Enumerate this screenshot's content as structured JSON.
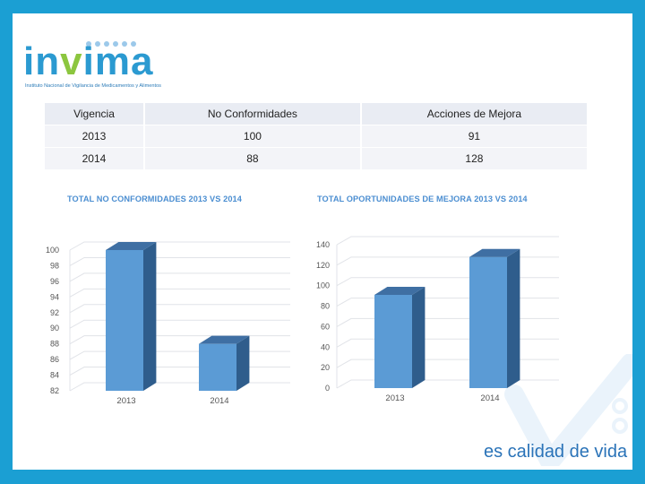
{
  "logo": {
    "text_before": "in",
    "text_v": "v",
    "text_after": "ima",
    "subtitle": "Instituto Nacional de Vigilancia de Medicamentos y Alimentos"
  },
  "table": {
    "headers": [
      "Vigencia",
      "No Conformidades",
      "Acciones de Mejora"
    ],
    "rows": [
      [
        "2013",
        "100",
        "91"
      ],
      [
        "2014",
        "88",
        "128"
      ]
    ]
  },
  "colors": {
    "frame": "#1b9fd3",
    "bar_front": "#5b9bd5",
    "bar_side": "#2f5d8c",
    "bar_top": "#3f6fa3",
    "title_blue": "#4b8ed1"
  },
  "tagline": "es calidad de vida",
  "chart_data": [
    {
      "type": "bar",
      "title": "TOTAL NO CONFORMIDADES 2013 VS 2014",
      "categories": [
        "2013",
        "2014"
      ],
      "values": [
        100,
        88
      ],
      "ylim": [
        82,
        100
      ],
      "yticks": [
        100,
        98,
        96,
        94,
        92,
        90,
        88,
        86,
        84,
        82
      ],
      "grid": true
    },
    {
      "type": "bar",
      "title": "TOTAL OPORTUNIDADES DE MEJORA 2013 VS 2014",
      "categories": [
        "2013",
        "2014"
      ],
      "values": [
        91,
        128
      ],
      "ylim": [
        0,
        140
      ],
      "yticks": [
        140,
        120,
        100,
        80,
        60,
        40,
        20,
        0
      ],
      "grid": true
    }
  ]
}
